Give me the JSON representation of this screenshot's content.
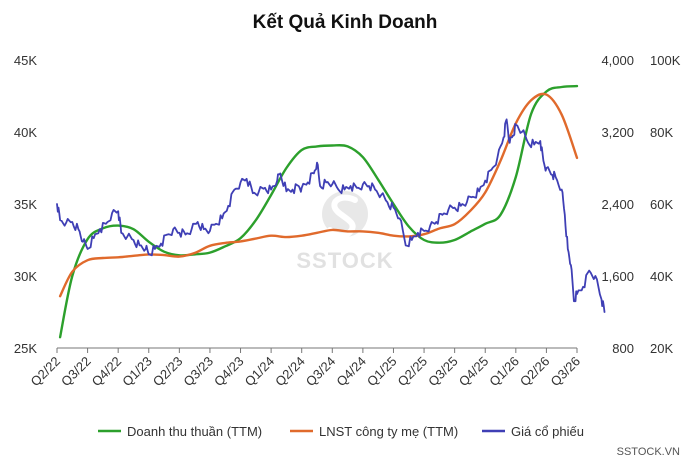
{
  "chart_data": {
    "type": "line",
    "title": "Kết Quả Kinh Doanh",
    "xlabel": "",
    "ylabel": "",
    "x_categories": [
      "Q2/22",
      "Q3/22",
      "Q4/22",
      "Q1/23",
      "Q2/23",
      "Q3/23",
      "Q4/23",
      "Q1/24",
      "Q2/24",
      "Q3/24",
      "Q4/24",
      "Q1/25",
      "Q2/25",
      "Q3/25",
      "Q4/25",
      "Q1/26",
      "Q2/26",
      "Q3/26"
    ],
    "axes": {
      "left": {
        "ticks": [
          "45K",
          "40K",
          "35K",
          "30K",
          "25K"
        ],
        "min": 25000,
        "max": 45000
      },
      "middle": {
        "ticks": [
          "4,000",
          "3,200",
          "2,400",
          "1,600",
          "800"
        ],
        "min": 800,
        "max": 4000
      },
      "right": {
        "ticks": [
          "100K",
          "80K",
          "60K",
          "40K",
          "20K"
        ],
        "min": 20000,
        "max": 100000
      }
    },
    "series": [
      {
        "name": "Doanh thu thuần (TTM)",
        "color": "#2ca02c",
        "axis": "middle",
        "points": [
          [
            0.1,
            920
          ],
          [
            0.5,
            1600
          ],
          [
            1.0,
            2010
          ],
          [
            1.5,
            2130
          ],
          [
            2.0,
            2160
          ],
          [
            2.5,
            2120
          ],
          [
            3.0,
            1980
          ],
          [
            3.5,
            1870
          ],
          [
            4.0,
            1830
          ],
          [
            4.5,
            1840
          ],
          [
            5.0,
            1860
          ],
          [
            5.5,
            1930
          ],
          [
            6.0,
            2020
          ],
          [
            6.5,
            2220
          ],
          [
            7.0,
            2500
          ],
          [
            7.5,
            2800
          ],
          [
            8.0,
            3000
          ],
          [
            8.5,
            3040
          ],
          [
            9.0,
            3050
          ],
          [
            9.5,
            3040
          ],
          [
            10.0,
            2920
          ],
          [
            10.5,
            2670
          ],
          [
            11.0,
            2400
          ],
          [
            11.5,
            2150
          ],
          [
            12.0,
            2000
          ],
          [
            12.5,
            1970
          ],
          [
            13.0,
            2000
          ],
          [
            13.5,
            2090
          ],
          [
            14.0,
            2180
          ],
          [
            14.5,
            2280
          ],
          [
            15.0,
            2700
          ],
          [
            15.5,
            3400
          ],
          [
            16.0,
            3650
          ],
          [
            16.5,
            3700
          ],
          [
            17.0,
            3710
          ]
        ]
      },
      {
        "name": "LNST công ty mẹ (TTM)",
        "color": "#e06a2c",
        "axis": "left",
        "points": [
          [
            0.1,
            28600
          ],
          [
            0.5,
            30300
          ],
          [
            1.0,
            31100
          ],
          [
            1.5,
            31250
          ],
          [
            2.0,
            31300
          ],
          [
            2.5,
            31400
          ],
          [
            3.0,
            31500
          ],
          [
            3.5,
            31450
          ],
          [
            4.0,
            31350
          ],
          [
            4.5,
            31600
          ],
          [
            5.0,
            32100
          ],
          [
            5.5,
            32300
          ],
          [
            6.0,
            32400
          ],
          [
            6.5,
            32600
          ],
          [
            7.0,
            32800
          ],
          [
            7.5,
            32700
          ],
          [
            8.0,
            32800
          ],
          [
            8.5,
            33000
          ],
          [
            9.0,
            33200
          ],
          [
            9.5,
            33100
          ],
          [
            10.0,
            33100
          ],
          [
            10.5,
            33000
          ],
          [
            11.0,
            32800
          ],
          [
            11.5,
            32750
          ],
          [
            12.0,
            32900
          ],
          [
            12.5,
            33300
          ],
          [
            13.0,
            33600
          ],
          [
            13.5,
            34500
          ],
          [
            14.0,
            35800
          ],
          [
            14.5,
            38000
          ],
          [
            15.0,
            40600
          ],
          [
            15.5,
            42200
          ],
          [
            16.0,
            42600
          ],
          [
            16.5,
            41200
          ],
          [
            17.0,
            38200
          ]
        ]
      },
      {
        "name": "Giá cổ phiếu",
        "color": "#3f3fb5",
        "axis": "right",
        "points": [
          [
            0.0,
            60000
          ],
          [
            0.1,
            55500
          ],
          [
            0.3,
            54800
          ],
          [
            0.5,
            55000
          ],
          [
            0.7,
            53000
          ],
          [
            0.85,
            49500
          ],
          [
            1.0,
            47500
          ],
          [
            1.2,
            50500
          ],
          [
            1.4,
            53000
          ],
          [
            1.6,
            54500
          ],
          [
            1.8,
            57500
          ],
          [
            2.0,
            58000
          ],
          [
            2.1,
            52000
          ],
          [
            2.3,
            51000
          ],
          [
            2.5,
            50000
          ],
          [
            2.7,
            48500
          ],
          [
            2.9,
            47500
          ],
          [
            3.0,
            46000
          ],
          [
            3.2,
            47500
          ],
          [
            3.4,
            49000
          ],
          [
            3.6,
            51500
          ],
          [
            3.8,
            53000
          ],
          [
            4.0,
            52000
          ],
          [
            4.2,
            51500
          ],
          [
            4.4,
            53000
          ],
          [
            4.6,
            55000
          ],
          [
            4.8,
            53000
          ],
          [
            5.0,
            52500
          ],
          [
            5.2,
            54500
          ],
          [
            5.4,
            56000
          ],
          [
            5.6,
            59500
          ],
          [
            5.8,
            64000
          ],
          [
            6.0,
            66000
          ],
          [
            6.2,
            67000
          ],
          [
            6.4,
            63000
          ],
          [
            6.6,
            63500
          ],
          [
            6.8,
            64500
          ],
          [
            7.0,
            64000
          ],
          [
            7.2,
            66500
          ],
          [
            7.3,
            68500
          ],
          [
            7.5,
            63500
          ],
          [
            7.7,
            64000
          ],
          [
            7.9,
            65000
          ],
          [
            8.0,
            64500
          ],
          [
            8.2,
            66000
          ],
          [
            8.4,
            68500
          ],
          [
            8.5,
            71500
          ],
          [
            8.6,
            65000
          ],
          [
            8.8,
            66000
          ],
          [
            9.0,
            65500
          ],
          [
            9.2,
            64000
          ],
          [
            9.4,
            64000
          ],
          [
            9.6,
            65000
          ],
          [
            9.8,
            64500
          ],
          [
            10.0,
            65500
          ],
          [
            10.2,
            65000
          ],
          [
            10.4,
            64000
          ],
          [
            10.6,
            62500
          ],
          [
            10.8,
            60500
          ],
          [
            11.0,
            59000
          ],
          [
            11.2,
            56000
          ],
          [
            11.4,
            48500
          ],
          [
            11.6,
            50000
          ],
          [
            11.8,
            52000
          ],
          [
            12.0,
            52500
          ],
          [
            12.2,
            54000
          ],
          [
            12.4,
            55000
          ],
          [
            12.6,
            57000
          ],
          [
            12.8,
            58500
          ],
          [
            13.0,
            59000
          ],
          [
            13.2,
            59500
          ],
          [
            13.4,
            60500
          ],
          [
            13.6,
            62000
          ],
          [
            13.8,
            63500
          ],
          [
            14.0,
            66500
          ],
          [
            14.2,
            69500
          ],
          [
            14.4,
            73000
          ],
          [
            14.6,
            78500
          ],
          [
            14.7,
            83500
          ],
          [
            14.8,
            77000
          ],
          [
            14.9,
            79000
          ],
          [
            15.0,
            82000
          ],
          [
            15.2,
            80000
          ],
          [
            15.4,
            77000
          ],
          [
            15.6,
            76500
          ],
          [
            15.8,
            77500
          ],
          [
            15.9,
            72000
          ],
          [
            16.0,
            70000
          ],
          [
            16.2,
            68000
          ],
          [
            16.3,
            67500
          ],
          [
            16.5,
            64000
          ],
          [
            16.6,
            57000
          ],
          [
            16.7,
            47500
          ],
          [
            16.8,
            43000
          ],
          [
            16.9,
            33000
          ],
          [
            17.0,
            35000
          ],
          [
            17.2,
            37000
          ],
          [
            17.4,
            41500
          ],
          [
            17.6,
            40000
          ],
          [
            17.8,
            33500
          ],
          [
            17.9,
            30000
          ]
        ]
      }
    ],
    "grid": false,
    "legend_position": "bottom"
  },
  "watermark": {
    "text": "SSTOCK"
  },
  "credit": "SSTOCK.VN"
}
